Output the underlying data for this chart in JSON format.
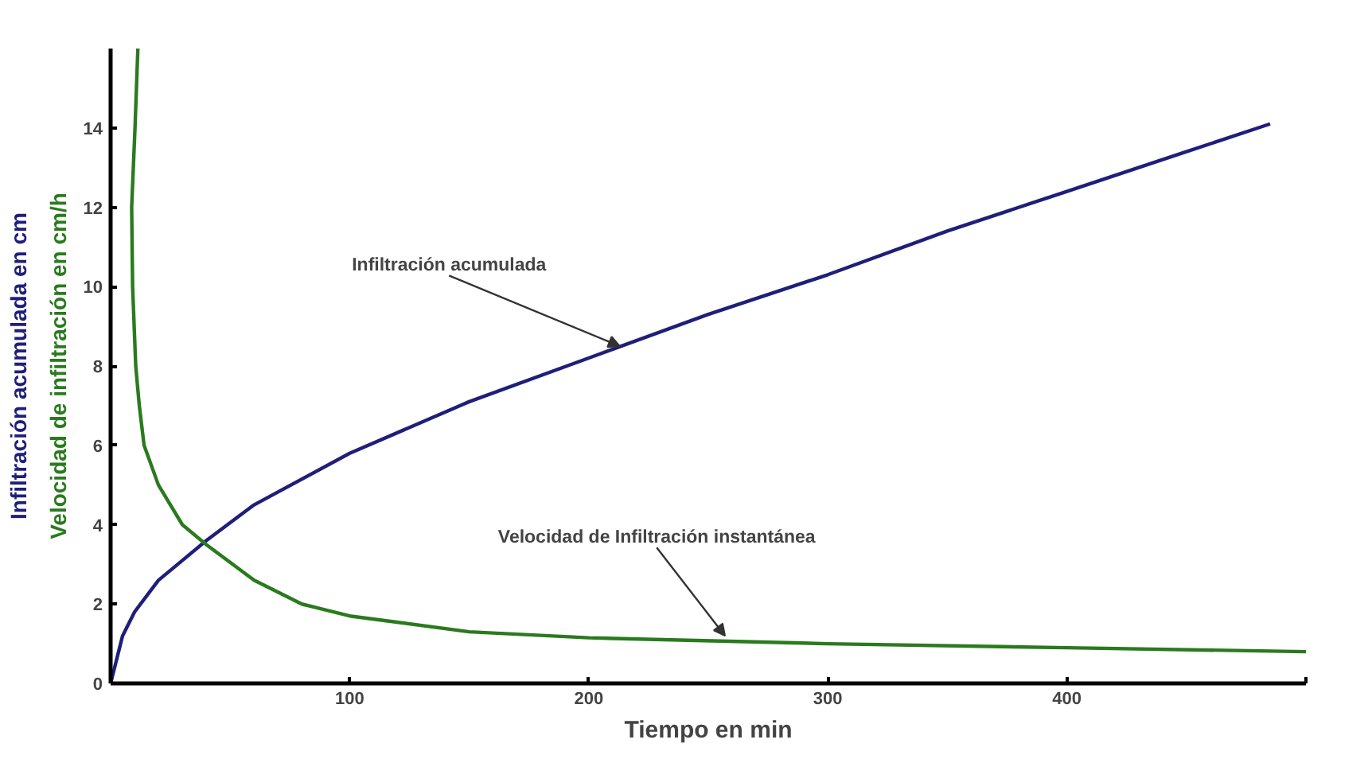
{
  "chart_data": {
    "type": "line",
    "xlabel": "Tiempo en min",
    "ylabel": "Infiltración acumulada en cm",
    "xlim": [
      0,
      500
    ],
    "ylim": [
      0,
      16
    ],
    "xticks": [
      100,
      200,
      300,
      400,
      {
        "value": 500,
        "label": null
      }
    ],
    "yticks": [
      0,
      2,
      4,
      6,
      8,
      10,
      12,
      14
    ],
    "grid": false,
    "marker": "none",
    "line_style": "solid",
    "series": [
      {
        "color": "#1f1f7a",
        "x": [
          0,
          5,
          10,
          20,
          40,
          60,
          100,
          150,
          200,
          250,
          300,
          350,
          400,
          450,
          485
        ],
        "values": [
          0,
          1.2,
          1.8,
          2.6,
          3.6,
          4.5,
          5.8,
          7.1,
          8.2,
          9.3,
          10.3,
          11.4,
          12.4,
          13.4,
          14.1
        ]
      },
      {
        "color": "#2a7a1e",
        "x": [
          11.4,
          10.2,
          8.8,
          9.2,
          10.5,
          12,
          14,
          20,
          30,
          40,
          60,
          80,
          100,
          150,
          200,
          300,
          400,
          500
        ],
        "values": [
          16,
          14,
          12,
          10,
          8,
          7,
          6,
          5,
          4,
          3.5,
          2.6,
          2.0,
          1.7,
          1.3,
          1.15,
          1.0,
          0.9,
          0.8
        ]
      }
    ],
    "annotations": [
      "Velocidad de infiltración en cm/h",
      {
        "text": "Infiltración acumulada",
        "x": 213,
        "y": 8.5
      },
      {
        "text": "Velocidad de Infiltración instantánea",
        "x": 257,
        "y": 1.2
      }
    ]
  }
}
